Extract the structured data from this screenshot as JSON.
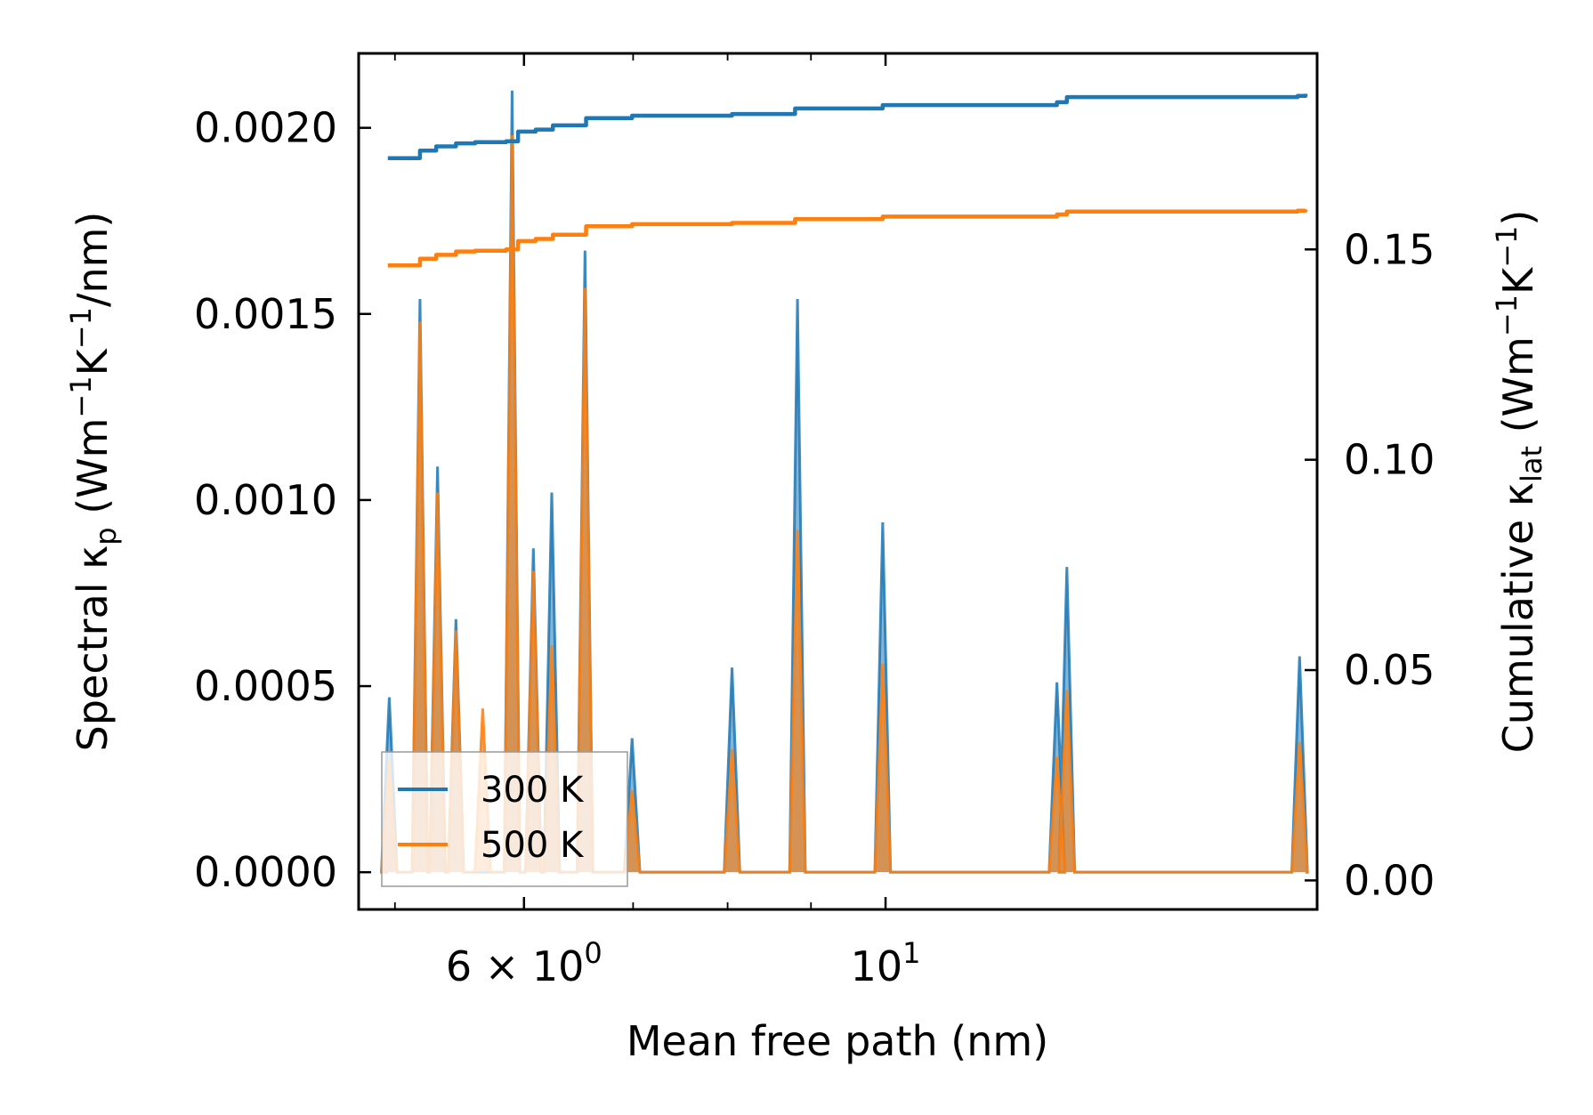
{
  "chart_data": {
    "type": "line",
    "title": "",
    "xlabel": "Mean free path (nm)",
    "ylabel_left": "Spectral κp (Wm⁻¹K⁻¹/nm)",
    "ylabel_right": "Cumulative κlat (Wm⁻¹K⁻¹)",
    "xscale": "log",
    "xlim": [
      4.75,
      18.4
    ],
    "ylim_left": [
      -0.0001,
      0.0022
    ],
    "ylim_right": [
      -0.0069,
      0.1966
    ],
    "xticks": [
      {
        "value": 6,
        "label": "6×10⁰",
        "base": "6 × 10",
        "exp": "0"
      },
      {
        "value": 10,
        "label": "10¹",
        "base": "10",
        "exp": "1"
      }
    ],
    "yticks_left": [
      "0.0000",
      "0.0005",
      "0.0010",
      "0.0015",
      "0.0020"
    ],
    "yticks_left_values": [
      0,
      0.0005,
      0.001,
      0.0015,
      0.002
    ],
    "yticks_right": [
      "0.00",
      "0.05",
      "0.10",
      "0.15"
    ],
    "yticks_right_values": [
      0,
      0.05,
      0.1,
      0.15
    ],
    "legend": {
      "position": "lower-left",
      "entries": [
        "300 K",
        "500 K"
      ]
    },
    "series_spectral": [
      {
        "name": "300 K",
        "color": "#1f77b4",
        "peaks": [
          [
            4.96,
            0.00047
          ],
          [
            5.18,
            0.00154
          ],
          [
            5.31,
            0.00109
          ],
          [
            5.45,
            0.00068
          ],
          [
            5.9,
            0.0021
          ],
          [
            6.08,
            0.00087
          ],
          [
            6.24,
            0.00102
          ],
          [
            6.54,
            0.00167
          ],
          [
            6.99,
            0.00036
          ],
          [
            8.05,
            0.00055
          ],
          [
            8.83,
            0.00154
          ],
          [
            9.96,
            0.00094
          ],
          [
            12.74,
            0.00051
          ],
          [
            12.92,
            0.00082
          ],
          [
            17.95,
            0.00058
          ]
        ]
      },
      {
        "name": "500 K",
        "color": "#ff7f0e",
        "peaks": [
          [
            4.96,
            0.0003
          ],
          [
            5.18,
            0.00148
          ],
          [
            5.31,
            0.00102
          ],
          [
            5.45,
            0.00065
          ],
          [
            5.66,
            0.00044
          ],
          [
            5.9,
            0.00198
          ],
          [
            6.08,
            0.00081
          ],
          [
            6.24,
            0.00061
          ],
          [
            6.54,
            0.00157
          ],
          [
            6.99,
            0.00022
          ],
          [
            8.05,
            0.00033
          ],
          [
            8.83,
            0.00092
          ],
          [
            9.96,
            0.00056
          ],
          [
            12.74,
            0.00031
          ],
          [
            12.92,
            0.00049
          ],
          [
            17.95,
            0.00035
          ]
        ]
      }
    ],
    "series_cumulative": [
      {
        "name": "300 K",
        "color": "#1f77b4",
        "points": [
          [
            4.95,
            0.1717
          ],
          [
            5.1,
            0.1717
          ],
          [
            5.18,
            0.1735
          ],
          [
            5.3,
            0.1745
          ],
          [
            5.45,
            0.1752
          ],
          [
            5.6,
            0.1755
          ],
          [
            5.85,
            0.1757
          ],
          [
            5.95,
            0.178
          ],
          [
            6.1,
            0.1785
          ],
          [
            6.25,
            0.1795
          ],
          [
            6.55,
            0.1812
          ],
          [
            6.99,
            0.1818
          ],
          [
            8.05,
            0.1822
          ],
          [
            8.8,
            0.1835
          ],
          [
            9.96,
            0.1843
          ],
          [
            12.74,
            0.185
          ],
          [
            12.92,
            0.1862
          ],
          [
            17.9,
            0.1865
          ],
          [
            18.1,
            0.187
          ]
        ]
      },
      {
        "name": "500 K",
        "color": "#ff7f0e",
        "points": [
          [
            4.95,
            0.1462
          ],
          [
            5.1,
            0.1462
          ],
          [
            5.18,
            0.1478
          ],
          [
            5.3,
            0.1487
          ],
          [
            5.45,
            0.1495
          ],
          [
            5.6,
            0.1497
          ],
          [
            5.85,
            0.15
          ],
          [
            5.95,
            0.152
          ],
          [
            6.1,
            0.1525
          ],
          [
            6.25,
            0.1535
          ],
          [
            6.55,
            0.1555
          ],
          [
            6.99,
            0.156
          ],
          [
            8.05,
            0.1563
          ],
          [
            8.8,
            0.1572
          ],
          [
            9.96,
            0.1578
          ],
          [
            12.74,
            0.1583
          ],
          [
            12.92,
            0.159
          ],
          [
            17.9,
            0.1592
          ],
          [
            18.1,
            0.1595
          ]
        ]
      }
    ]
  }
}
